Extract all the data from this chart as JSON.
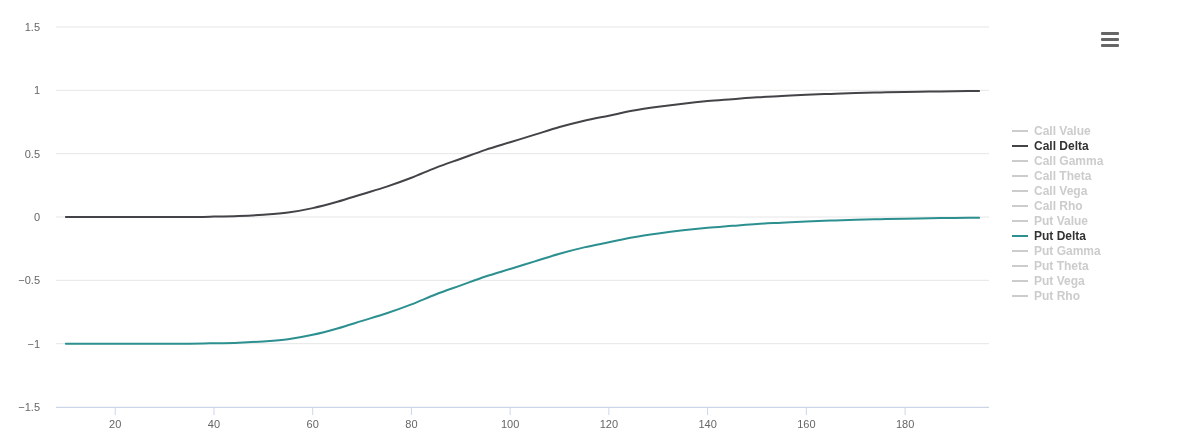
{
  "chart_data": {
    "type": "line",
    "x": [
      10,
      15,
      20,
      25,
      30,
      35,
      40,
      45,
      50,
      55,
      60,
      65,
      70,
      75,
      80,
      85,
      90,
      95,
      100,
      105,
      110,
      115,
      120,
      125,
      130,
      135,
      140,
      145,
      150,
      155,
      160,
      165,
      170,
      175,
      180,
      185,
      190,
      195
    ],
    "xlim": [
      8,
      197
    ],
    "xticks": [
      20,
      40,
      60,
      80,
      100,
      120,
      140,
      160,
      180
    ],
    "ylim": [
      -1.5,
      1.5
    ],
    "yticks": [
      -1.5,
      -1,
      -0.5,
      0,
      0.5,
      1,
      1.5
    ],
    "grid": "y",
    "legend": "right",
    "marker": "none",
    "line_style": "solid",
    "series": [
      {
        "name": "Call Value",
        "color": "#cccccc",
        "values": [
          null,
          null,
          null,
          null,
          null,
          null,
          null,
          null,
          null,
          null,
          null,
          null,
          null,
          null,
          null,
          null,
          null,
          null,
          null,
          null,
          null,
          null,
          null,
          null,
          null,
          null,
          null,
          null,
          null,
          null,
          null,
          null,
          null,
          null,
          null,
          null,
          null,
          null
        ]
      },
      {
        "name": "Call Delta",
        "color": "#434348",
        "values": [
          0,
          0,
          0,
          0,
          0,
          0,
          0.003,
          0.008,
          0.018,
          0.035,
          0.07,
          0.12,
          0.18,
          0.24,
          0.31,
          0.39,
          0.46,
          0.53,
          0.59,
          0.65,
          0.71,
          0.76,
          0.8,
          0.84,
          0.87,
          0.895,
          0.915,
          0.93,
          0.945,
          0.955,
          0.965,
          0.972,
          0.978,
          0.983,
          0.987,
          0.99,
          0.993,
          0.995
        ]
      },
      {
        "name": "Call Gamma",
        "color": "#cccccc",
        "values": [
          null,
          null,
          null,
          null,
          null,
          null,
          null,
          null,
          null,
          null,
          null,
          null,
          null,
          null,
          null,
          null,
          null,
          null,
          null,
          null,
          null,
          null,
          null,
          null,
          null,
          null,
          null,
          null,
          null,
          null,
          null,
          null,
          null,
          null,
          null,
          null,
          null,
          null
        ]
      },
      {
        "name": "Call Theta",
        "color": "#cccccc",
        "values": [
          null,
          null,
          null,
          null,
          null,
          null,
          null,
          null,
          null,
          null,
          null,
          null,
          null,
          null,
          null,
          null,
          null,
          null,
          null,
          null,
          null,
          null,
          null,
          null,
          null,
          null,
          null,
          null,
          null,
          null,
          null,
          null,
          null,
          null,
          null,
          null,
          null,
          null
        ]
      },
      {
        "name": "Call Vega",
        "color": "#cccccc",
        "values": [
          null,
          null,
          null,
          null,
          null,
          null,
          null,
          null,
          null,
          null,
          null,
          null,
          null,
          null,
          null,
          null,
          null,
          null,
          null,
          null,
          null,
          null,
          null,
          null,
          null,
          null,
          null,
          null,
          null,
          null,
          null,
          null,
          null,
          null,
          null,
          null,
          null,
          null
        ]
      },
      {
        "name": "Call Rho",
        "color": "#cccccc",
        "values": [
          null,
          null,
          null,
          null,
          null,
          null,
          null,
          null,
          null,
          null,
          null,
          null,
          null,
          null,
          null,
          null,
          null,
          null,
          null,
          null,
          null,
          null,
          null,
          null,
          null,
          null,
          null,
          null,
          null,
          null,
          null,
          null,
          null,
          null,
          null,
          null,
          null,
          null
        ]
      },
      {
        "name": "Put Value",
        "color": "#cccccc",
        "values": [
          null,
          null,
          null,
          null,
          null,
          null,
          null,
          null,
          null,
          null,
          null,
          null,
          null,
          null,
          null,
          null,
          null,
          null,
          null,
          null,
          null,
          null,
          null,
          null,
          null,
          null,
          null,
          null,
          null,
          null,
          null,
          null,
          null,
          null,
          null,
          null,
          null,
          null
        ]
      },
      {
        "name": "Put Delta",
        "color": "#2b908f",
        "values": [
          -1,
          -1,
          -1,
          -1,
          -1,
          -1,
          -0.997,
          -0.992,
          -0.982,
          -0.965,
          -0.93,
          -0.88,
          -0.82,
          -0.76,
          -0.69,
          -0.61,
          -0.54,
          -0.47,
          -0.41,
          -0.35,
          -0.29,
          -0.24,
          -0.2,
          -0.16,
          -0.13,
          -0.105,
          -0.085,
          -0.07,
          -0.055,
          -0.045,
          -0.035,
          -0.028,
          -0.022,
          -0.017,
          -0.013,
          -0.01,
          -0.007,
          -0.005
        ]
      },
      {
        "name": "Put Gamma",
        "color": "#cccccc",
        "values": [
          null,
          null,
          null,
          null,
          null,
          null,
          null,
          null,
          null,
          null,
          null,
          null,
          null,
          null,
          null,
          null,
          null,
          null,
          null,
          null,
          null,
          null,
          null,
          null,
          null,
          null,
          null,
          null,
          null,
          null,
          null,
          null,
          null,
          null,
          null,
          null,
          null,
          null
        ]
      },
      {
        "name": "Put Theta",
        "color": "#cccccc",
        "values": [
          null,
          null,
          null,
          null,
          null,
          null,
          null,
          null,
          null,
          null,
          null,
          null,
          null,
          null,
          null,
          null,
          null,
          null,
          null,
          null,
          null,
          null,
          null,
          null,
          null,
          null,
          null,
          null,
          null,
          null,
          null,
          null,
          null,
          null,
          null,
          null,
          null,
          null
        ]
      },
      {
        "name": "Put Vega",
        "color": "#cccccc",
        "values": [
          null,
          null,
          null,
          null,
          null,
          null,
          null,
          null,
          null,
          null,
          null,
          null,
          null,
          null,
          null,
          null,
          null,
          null,
          null,
          null,
          null,
          null,
          null,
          null,
          null,
          null,
          null,
          null,
          null,
          null,
          null,
          null,
          null,
          null,
          null,
          null,
          null,
          null
        ]
      },
      {
        "name": "Put Rho",
        "color": "#cccccc",
        "values": [
          null,
          null,
          null,
          null,
          null,
          null,
          null,
          null,
          null,
          null,
          null,
          null,
          null,
          null,
          null,
          null,
          null,
          null,
          null,
          null,
          null,
          null,
          null,
          null,
          null,
          null,
          null,
          null,
          null,
          null,
          null,
          null,
          null,
          null,
          null,
          null,
          null,
          null
        ]
      }
    ]
  }
}
